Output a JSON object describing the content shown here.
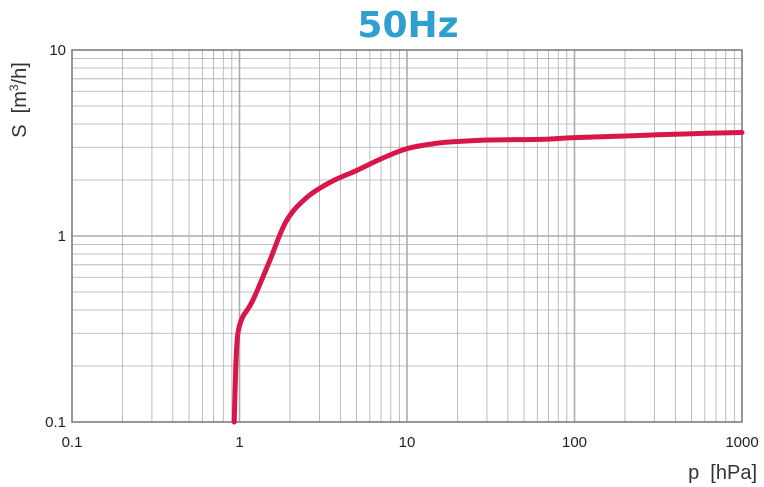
{
  "chart_data": {
    "type": "line",
    "title": "50Hz",
    "xlabel": "p  [hPa]",
    "ylabel_main": "S  [m",
    "ylabel_sup": "3",
    "ylabel_tail": "/h]",
    "x_scale": "log",
    "y_scale": "log",
    "xlim": [
      0.1,
      1000
    ],
    "ylim": [
      0.1,
      10
    ],
    "x_ticks": [
      {
        "value": 0.1,
        "label": "0.1"
      },
      {
        "value": 1,
        "label": "1"
      },
      {
        "value": 10,
        "label": "10"
      },
      {
        "value": 100,
        "label": "100"
      },
      {
        "value": 1000,
        "label": "1000"
      }
    ],
    "y_ticks": [
      {
        "value": 0.1,
        "label": "0.1"
      },
      {
        "value": 1,
        "label": "1"
      },
      {
        "value": 10,
        "label": "10"
      }
    ],
    "grid": true,
    "series": [
      {
        "x": [
          0.93,
          0.95,
          0.97,
          1.0,
          1.05,
          1.2,
          1.5,
          1.9,
          2.5,
          3.5,
          5,
          7,
          10,
          15,
          20,
          30,
          50,
          70,
          100,
          200,
          500,
          1000
        ],
        "y": [
          0.1,
          0.2,
          0.28,
          0.33,
          0.37,
          0.45,
          0.72,
          1.2,
          1.6,
          1.95,
          2.25,
          2.6,
          2.95,
          3.15,
          3.22,
          3.28,
          3.3,
          3.32,
          3.38,
          3.45,
          3.55,
          3.6
        ]
      }
    ],
    "colors": {
      "title": "#2e9fd0",
      "line": "#d8164a",
      "grid": "#a9adb1",
      "axes": "#7a7f84"
    }
  }
}
